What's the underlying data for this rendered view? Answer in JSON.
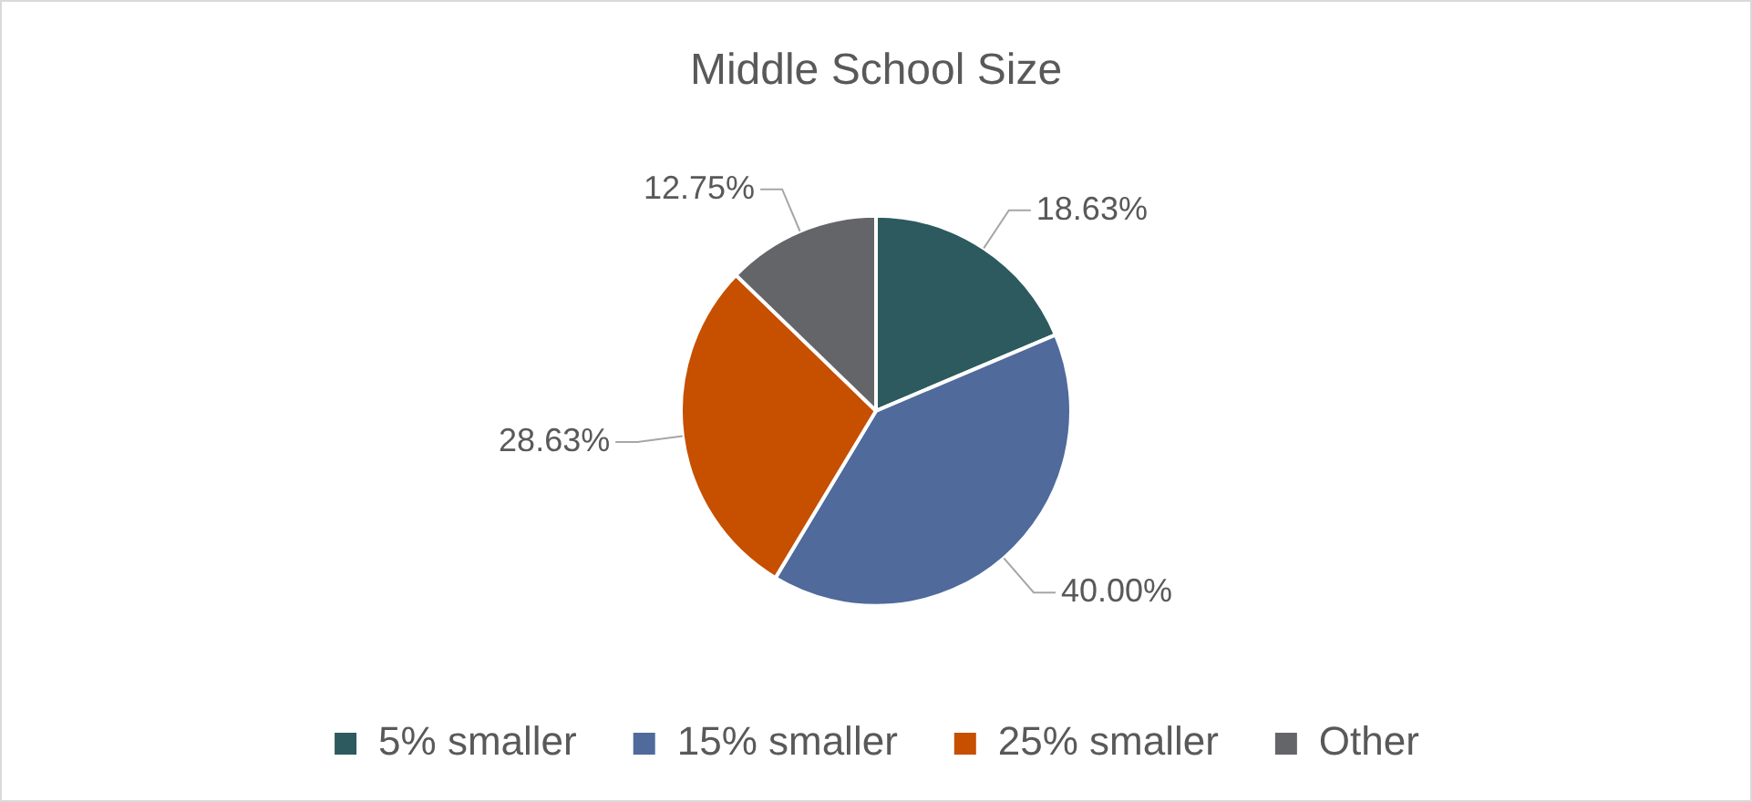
{
  "chart_data": {
    "type": "pie",
    "title": "Middle School Size",
    "categories": [
      "5% smaller",
      "15% smaller",
      "25% smaller",
      "Other"
    ],
    "values": [
      18.63,
      40.0,
      28.63,
      12.75
    ],
    "value_labels": [
      "18.63%",
      "40.00%",
      "28.63%",
      "12.75%"
    ],
    "colors": [
      "#2c5a5e",
      "#4f6a9b",
      "#c64f00",
      "#636569"
    ],
    "legend": "bottom"
  }
}
